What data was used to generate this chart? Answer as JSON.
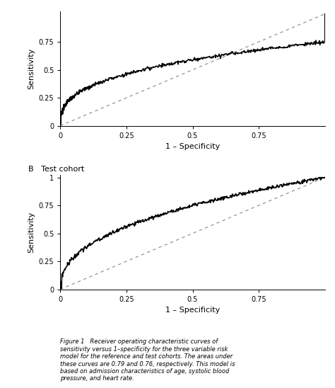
{
  "title_a": "",
  "title_b": "B   Test cohort",
  "xlabel": "1 – Specificity",
  "ylabel": "Sensitivity",
  "xticks": [
    0,
    0.25,
    0.5,
    0.75
  ],
  "yticks_a": [
    0,
    0.25,
    0.5,
    0.75
  ],
  "yticks_b": [
    0,
    0.25,
    0.5,
    0.75,
    1
  ],
  "auc_a": 0.79,
  "auc_b": 0.76,
  "curve_color": "#000000",
  "diag_color": "#888888",
  "background_color": "#ffffff",
  "fig_caption": "Figure 1   Receiver operating characteristic curves of\nsensitivity versus 1–specificity for the three variable risk\nmodel for the reference and test cohorts. The areas under\nthese curves are 0.79 and 0.76, respectively. This model is\nbased on admission characteristics of age, systolic blood\npressure, and heart rate."
}
